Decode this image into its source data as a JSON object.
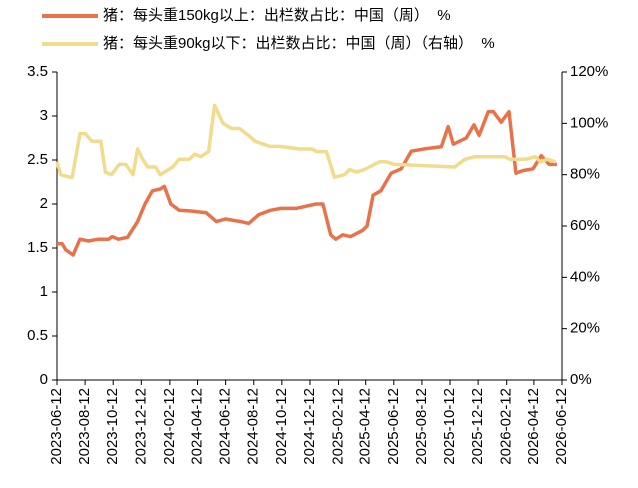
{
  "chart_data": {
    "type": "line",
    "xlim": [
      "2023-06-12",
      "2026-06-12"
    ],
    "xticks": [
      "2023-06-12",
      "2023-08-12",
      "2023-10-12",
      "2023-12-12",
      "2024-02-12",
      "2024-04-12",
      "2024-06-12",
      "2024-08-12",
      "2024-10-12",
      "2024-12-12",
      "2025-02-12",
      "2025-04-12",
      "2025-06-12",
      "2025-08-12",
      "2025-10-12",
      "2025-12-12",
      "2026-02-12",
      "2026-04-12",
      "2026-06-12"
    ],
    "ylim": [
      0,
      3.5
    ],
    "yticks": [
      0,
      0.5,
      1,
      1.5,
      2,
      2.5,
      3,
      3.5
    ],
    "y2lim": [
      0,
      120
    ],
    "y2ticks": [
      {
        "value": 0,
        "label": "0%"
      },
      {
        "value": 20,
        "label": "20%"
      },
      {
        "value": 40,
        "label": "40%"
      },
      {
        "value": 60,
        "label": "60%"
      },
      {
        "value": 80,
        "label": "80%"
      },
      {
        "value": 100,
        "label": "100%"
      },
      {
        "value": 120,
        "label": "120%"
      }
    ],
    "grid": false,
    "series": [
      {
        "name": "猪：每头重150kg以上：出栏数占比：中国（周）  %",
        "color": "#e8734a",
        "x": [
          "2023-06-12",
          "2023-06-23",
          "2023-07-01",
          "2023-07-17",
          "2023-08-01",
          "2023-08-19",
          "2023-09-10",
          "2023-10-02",
          "2023-10-10",
          "2023-10-23",
          "2023-11-12",
          "2023-12-04",
          "2023-12-20",
          "2024-01-05",
          "2024-01-22",
          "2024-01-31",
          "2024-02-14",
          "2024-03-03",
          "2024-03-29",
          "2024-05-01",
          "2024-05-23",
          "2024-06-12",
          "2024-07-15",
          "2024-08-01",
          "2024-08-23",
          "2024-09-18",
          "2024-10-10",
          "2024-11-12",
          "2024-12-25",
          "2025-01-09",
          "2025-01-26",
          "2025-02-06",
          "2025-02-21",
          "2025-03-10",
          "2025-04-05",
          "2025-04-15",
          "2025-04-28",
          "2025-05-15",
          "2025-06-06",
          "2025-06-28",
          "2025-07-20",
          "2025-08-21",
          "2025-09-23",
          "2025-10-08",
          "2025-10-19",
          "2025-11-16",
          "2025-12-03",
          "2025-12-14",
          "2026-01-03",
          "2026-01-14",
          "2026-01-31",
          "2026-02-17",
          "2026-03-04",
          "2026-03-19",
          "2026-04-10",
          "2026-04-28",
          "2026-05-15",
          "2026-06-01"
        ],
        "values": [
          1.55,
          1.55,
          1.48,
          1.42,
          1.6,
          1.58,
          1.6,
          1.6,
          1.63,
          1.6,
          1.62,
          1.8,
          2.0,
          2.15,
          2.17,
          2.2,
          2.0,
          1.93,
          1.92,
          1.9,
          1.8,
          1.83,
          1.8,
          1.78,
          1.88,
          1.93,
          1.95,
          1.95,
          2.0,
          2.0,
          1.65,
          1.6,
          1.65,
          1.63,
          1.7,
          1.75,
          2.1,
          2.15,
          2.35,
          2.4,
          2.6,
          2.63,
          2.65,
          2.88,
          2.68,
          2.75,
          2.9,
          2.78,
          3.05,
          3.05,
          2.93,
          3.05,
          2.35,
          2.38,
          2.4,
          2.55,
          2.45,
          2.45
        ]
      },
      {
        "name": "猪：每头重90kg以下：出栏数占比：中国（周）（右轴）  %",
        "color": "#f0dc8c",
        "axis": "y2",
        "x": [
          "2023-06-12",
          "2023-06-20",
          "2023-07-10",
          "2023-07-15",
          "2023-08-01",
          "2023-08-12",
          "2023-08-27",
          "2023-09-15",
          "2023-09-25",
          "2023-10-08",
          "2023-10-25",
          "2023-11-08",
          "2023-11-24",
          "2023-12-04",
          "2023-12-15",
          "2023-12-26",
          "2024-01-12",
          "2024-01-22",
          "2024-02-18",
          "2024-03-03",
          "2024-03-25",
          "2024-04-06",
          "2024-04-19",
          "2024-05-06",
          "2024-05-19",
          "2024-06-06",
          "2024-06-25",
          "2024-07-12",
          "2024-08-03",
          "2024-08-15",
          "2024-09-16",
          "2024-10-07",
          "2024-11-19",
          "2024-12-17",
          "2024-12-26",
          "2025-01-17",
          "2025-02-03",
          "2025-02-25",
          "2025-03-08",
          "2025-03-23",
          "2025-04-09",
          "2025-05-12",
          "2025-05-27",
          "2025-06-14",
          "2025-10-22",
          "2025-11-13",
          "2025-12-05",
          "2026-02-08",
          "2026-02-19",
          "2026-03-25",
          "2026-04-15",
          "2026-04-26",
          "2026-05-11",
          "2026-05-29"
        ],
        "values": [
          85,
          80,
          79,
          79,
          96,
          96,
          93,
          93,
          81,
          80,
          84,
          84,
          80,
          90,
          86,
          83,
          83,
          80,
          83,
          86,
          86,
          88,
          87,
          89,
          107,
          100,
          98,
          98,
          95,
          93,
          91,
          91,
          90,
          90,
          89,
          89,
          79,
          80,
          82,
          81,
          82,
          85,
          85,
          84,
          83,
          86,
          87,
          87,
          86,
          86,
          87,
          85,
          86,
          85
        ]
      }
    ]
  }
}
